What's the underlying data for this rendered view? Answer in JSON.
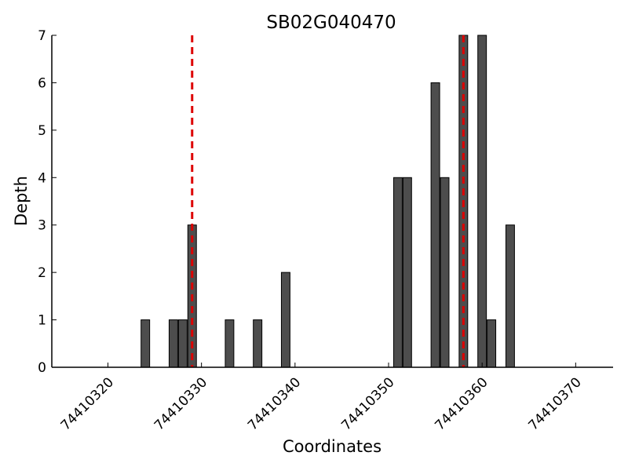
{
  "chart_data": {
    "type": "bar",
    "title": "SB02G040470",
    "xlabel": "Coordinates",
    "ylabel": "Depth",
    "xlim": [
      74410314,
      74410374
    ],
    "ylim": [
      0,
      7
    ],
    "grid": false,
    "legend": "none",
    "xticks": [
      "74410320",
      "74410330",
      "74410340",
      "74410350",
      "74410360",
      "74410370"
    ],
    "xtick_values": [
      74410320,
      74410330,
      74410340,
      74410350,
      74410360,
      74410370
    ],
    "yticks": [
      "0",
      "1",
      "2",
      "3",
      "4",
      "5",
      "6",
      "7"
    ],
    "ytick_values": [
      0,
      1,
      2,
      3,
      4,
      5,
      6,
      7
    ],
    "bar_color": "#4d4d4d",
    "series": [
      {
        "x": [
          74410324,
          74410327,
          74410328,
          74410329,
          74410333,
          74410336,
          74410339,
          74410351,
          74410352,
          74410355,
          74410356,
          74410358,
          74410360,
          74410361,
          74410363
        ],
        "values": [
          1,
          1,
          1,
          3,
          1,
          1,
          2,
          4,
          4,
          6,
          4,
          7,
          7,
          1,
          3
        ]
      }
    ],
    "reference_lines": {
      "color": "#dd0000",
      "style": "dashed",
      "x": [
        74410329,
        74410358
      ]
    }
  }
}
